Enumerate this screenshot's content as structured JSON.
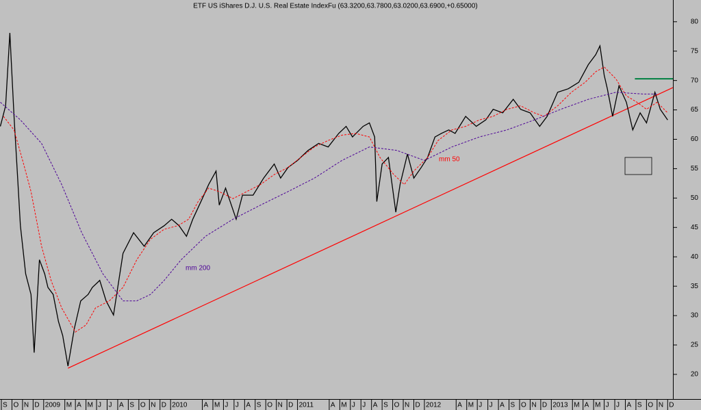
{
  "chart_data": {
    "type": "line",
    "title": "ETF US iShares D.J. U.S. Real Estate IndexFu (63.3200,63.7800,63.0200,63.6900,+0.65000)",
    "xlim": [
      -0.13,
      63.5
    ],
    "ylim": [
      15.8,
      83.7
    ],
    "yticks": [
      20,
      25,
      30,
      35,
      40,
      45,
      50,
      55,
      60,
      65,
      70,
      75,
      80
    ],
    "xticks": [
      {
        "value": 0,
        "label": "S"
      },
      {
        "value": 1,
        "label": "O"
      },
      {
        "value": 2,
        "label": "N"
      },
      {
        "value": 3,
        "label": "D"
      },
      {
        "value": 4,
        "label": "2009"
      },
      {
        "value": 6,
        "label": "M"
      },
      {
        "value": 7,
        "label": "A"
      },
      {
        "value": 8,
        "label": "M"
      },
      {
        "value": 9,
        "label": "J"
      },
      {
        "value": 10,
        "label": "J"
      },
      {
        "value": 11,
        "label": "A"
      },
      {
        "value": 12,
        "label": "S"
      },
      {
        "value": 13,
        "label": "O"
      },
      {
        "value": 14,
        "label": "N"
      },
      {
        "value": 15,
        "label": "D"
      },
      {
        "value": 16,
        "label": "2010"
      },
      {
        "value": 19,
        "label": "A"
      },
      {
        "value": 20,
        "label": "M"
      },
      {
        "value": 21,
        "label": "J"
      },
      {
        "value": 22,
        "label": "J"
      },
      {
        "value": 23,
        "label": "A"
      },
      {
        "value": 24,
        "label": "S"
      },
      {
        "value": 25,
        "label": "O"
      },
      {
        "value": 26,
        "label": "N"
      },
      {
        "value": 27,
        "label": "D"
      },
      {
        "value": 28,
        "label": "2011"
      },
      {
        "value": 31,
        "label": "A"
      },
      {
        "value": 32,
        "label": "M"
      },
      {
        "value": 33,
        "label": "J"
      },
      {
        "value": 34,
        "label": "J"
      },
      {
        "value": 35,
        "label": "A"
      },
      {
        "value": 36,
        "label": "S"
      },
      {
        "value": 37,
        "label": "O"
      },
      {
        "value": 38,
        "label": "N"
      },
      {
        "value": 39,
        "label": "D"
      },
      {
        "value": 40,
        "label": "2012"
      },
      {
        "value": 43,
        "label": "A"
      },
      {
        "value": 44,
        "label": "M"
      },
      {
        "value": 45,
        "label": "J"
      },
      {
        "value": 46,
        "label": "J"
      },
      {
        "value": 47,
        "label": "A"
      },
      {
        "value": 48,
        "label": "S"
      },
      {
        "value": 49,
        "label": "O"
      },
      {
        "value": 50,
        "label": "N"
      },
      {
        "value": 51,
        "label": "D"
      },
      {
        "value": 52,
        "label": "2013"
      },
      {
        "value": 54,
        "label": "M"
      },
      {
        "value": 55,
        "label": "A"
      },
      {
        "value": 56,
        "label": "M"
      },
      {
        "value": 57,
        "label": "J"
      },
      {
        "value": 58,
        "label": "J"
      },
      {
        "value": 59,
        "label": "A"
      },
      {
        "value": 60,
        "label": "S"
      },
      {
        "value": 61,
        "label": "O"
      },
      {
        "value": 62,
        "label": "N"
      },
      {
        "value": 63,
        "label": "D"
      }
    ],
    "series": [
      {
        "color": "#000000",
        "dash": false,
        "x": [
          -0.1,
          0.4,
          0.8,
          1.2,
          1.5,
          1.8,
          2.3,
          2.8,
          3.1,
          3.6,
          4.1,
          4.4,
          4.9,
          5.4,
          5.8,
          6.3,
          6.9,
          7.5,
          8.2,
          8.6,
          9.3,
          9.9,
          10.6,
          10.9,
          11.5,
          12.5,
          13.5,
          14.4,
          15.4,
          16.1,
          16.8,
          17.5,
          18.1,
          19,
          19.6,
          20.3,
          20.6,
          21.2,
          22.2,
          22.8,
          23.8,
          24.8,
          25.8,
          26.4,
          27.1,
          28,
          29,
          30,
          30.9,
          31.9,
          32.6,
          33.2,
          34.2,
          34.8,
          35.3,
          35.5,
          36,
          36.6,
          37.3,
          37.7,
          38.4,
          39,
          39.7,
          40.3,
          41,
          41.6,
          42.3,
          42.9,
          43.9,
          44.9,
          45.8,
          46.5,
          47.4,
          48.4,
          49.1,
          50,
          50.9,
          51.6,
          52.6,
          53.6,
          54.6,
          55.5,
          56.2,
          56.6,
          57,
          57.3,
          57.8,
          58.4,
          59.1,
          59.7,
          60.4,
          61,
          61.8,
          62.3,
          63
        ],
        "values": [
          62.2,
          65.7,
          78.1,
          63.9,
          54.6,
          45.3,
          37.1,
          33.6,
          23.7,
          39.5,
          37.1,
          34.8,
          33.6,
          29,
          26.6,
          21.4,
          27.8,
          32.5,
          33.6,
          34.8,
          36,
          32.5,
          30.1,
          33.6,
          40.6,
          44.1,
          41.8,
          44.1,
          45.3,
          46.4,
          45.3,
          43.5,
          46.4,
          49.9,
          52.3,
          54.6,
          48.8,
          51.7,
          46.4,
          50.5,
          50.5,
          53.4,
          55.8,
          53.4,
          55.2,
          56.4,
          58.1,
          59.3,
          58.7,
          61,
          62.2,
          60.4,
          62.2,
          62.8,
          60.4,
          49.4,
          55.8,
          56.9,
          47.6,
          52.3,
          57.5,
          53.4,
          55.2,
          56.9,
          60.4,
          61,
          61.6,
          61,
          63.9,
          62.2,
          63.3,
          65.1,
          64.5,
          66.8,
          65.1,
          64.5,
          62.2,
          63.9,
          68,
          68.6,
          69.7,
          72.7,
          74.4,
          75.9,
          70.9,
          68.6,
          63.9,
          69.1,
          66.3,
          61.6,
          64.5,
          62.8,
          68,
          65.1,
          63.3
        ]
      },
      {
        "name": "mm 50",
        "color": "#ff0000",
        "dash": true,
        "x": [
          0.2,
          1.2,
          2.1,
          2.8,
          3.8,
          4.7,
          5.7,
          7,
          8,
          8.9,
          10.2,
          11.5,
          12.8,
          14.1,
          15.4,
          16.7,
          17.7,
          18.6,
          19.6,
          20.6,
          21.9,
          23.2,
          24.5,
          25.8,
          27.1,
          28.3,
          29.6,
          30.9,
          32.2,
          33.5,
          34.8,
          35.8,
          37.1,
          38.1,
          39,
          40.3,
          41.3,
          42.6,
          43.9,
          45.2,
          46.5,
          47.8,
          49.1,
          50.4,
          51.3,
          52.6,
          53.9,
          55.2,
          56.2,
          57,
          58.1,
          59.1,
          60.1,
          61,
          62,
          63
        ],
        "values": [
          63.9,
          61.6,
          55.8,
          51.1,
          41.8,
          36,
          31.3,
          27.2,
          28.4,
          31.3,
          32.5,
          34.8,
          39.5,
          43,
          44.7,
          45.3,
          46.4,
          49.4,
          51.7,
          51.1,
          49.9,
          51.1,
          52.3,
          54,
          55.2,
          56.9,
          58.7,
          59.8,
          60.7,
          61,
          60.4,
          56.9,
          54,
          52.3,
          54.6,
          56.9,
          59.8,
          61.6,
          62.2,
          63.3,
          63.9,
          65.1,
          65.7,
          64.5,
          63.9,
          65.7,
          68,
          69.7,
          71.5,
          72.3,
          70.3,
          67.4,
          66.3,
          65.1,
          66.3,
          64.5
        ]
      },
      {
        "name": "mm 200",
        "color": "#4b0096",
        "dash": true,
        "x": [
          -0.1,
          1.8,
          3.8,
          5.7,
          7.6,
          9.6,
          11.5,
          12.8,
          14.1,
          15.4,
          17,
          19.3,
          21.9,
          24.5,
          27.1,
          29.6,
          32.2,
          34.8,
          37.4,
          40,
          42.6,
          45.2,
          47.8,
          50.4,
          52.9,
          55.5,
          58.1,
          60.7,
          62
        ],
        "values": [
          66.3,
          63.3,
          59.3,
          52.3,
          44.1,
          37.1,
          32.5,
          32.5,
          33.6,
          36,
          39.5,
          43.5,
          46.4,
          48.8,
          51.1,
          53.4,
          56.4,
          58.7,
          58.1,
          56.4,
          58.7,
          60.4,
          61.6,
          63.3,
          65.1,
          66.8,
          68,
          67.7,
          67.7
        ]
      }
    ],
    "trendlines": [
      {
        "color": "#ff0000",
        "x": [
          6.3,
          63.5
        ],
        "values": [
          21.05,
          68.8
        ]
      },
      {
        "color": "#008040",
        "x": [
          59.9,
          63.5
        ],
        "values": [
          70.3,
          70.3
        ]
      }
    ]
  }
}
